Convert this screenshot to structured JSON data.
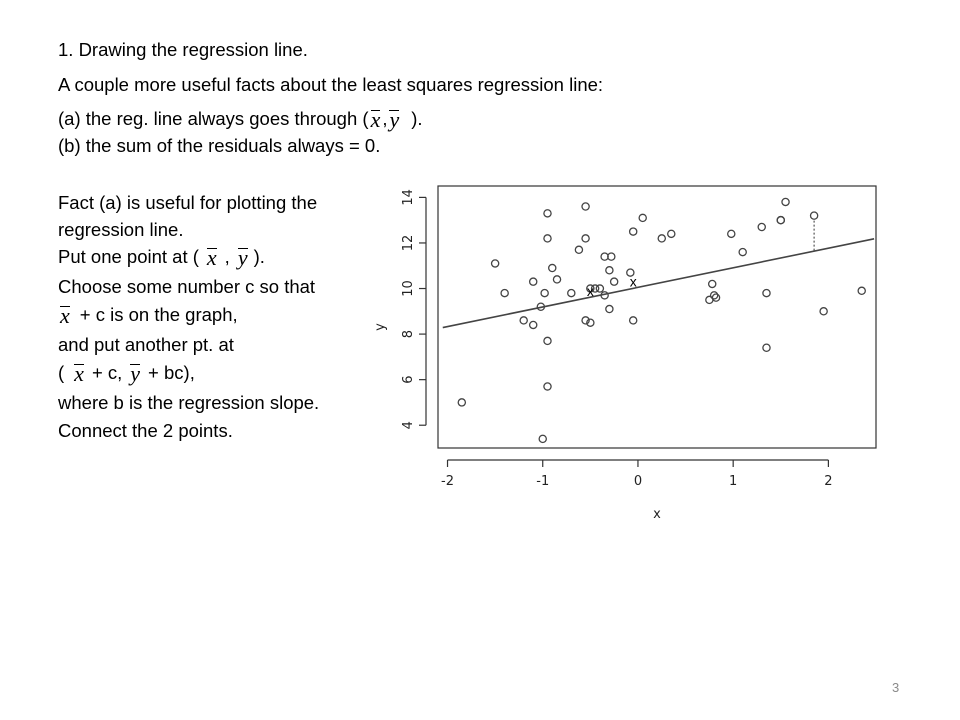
{
  "slide": {
    "lines": {
      "l1": "1. Drawing the regression line.",
      "l2": "A couple more useful facts about the least squares regression line:",
      "l3a": "(a) the reg. line always goes through (",
      "l3b": ").",
      "l4": "(b) the sum of the residuals always = 0.",
      "l5": "Fact (a) is useful for plotting the",
      "l6": "regression line.",
      "l7a": "Put one point at (",
      "l7b": ",",
      "l7c": ").",
      "l8": "Choose some number c so that",
      "l9": "+ c is on the graph,",
      "l10": "and put another pt. at",
      "l11a": "(",
      "l11b": "+ c,",
      "l11c": "+ bc),",
      "l12": "where b is the regression slope.",
      "l13": "Connect the 2 points."
    },
    "symbols": {
      "x": "x",
      "y": "y"
    },
    "page_number": "3"
  },
  "chart_data": {
    "type": "scatter",
    "xlabel": "x",
    "ylabel": "y",
    "xlim": [
      -2.1,
      2.5
    ],
    "ylim": [
      3,
      14.5
    ],
    "xticks": [
      -2,
      -1,
      0,
      1,
      2
    ],
    "yticks": [
      4,
      6,
      8,
      10,
      12,
      14
    ],
    "grid": false,
    "points": [
      [
        -1.85,
        5.0
      ],
      [
        -1.5,
        11.1
      ],
      [
        -1.4,
        9.8
      ],
      [
        -1.2,
        8.6
      ],
      [
        -1.1,
        10.3
      ],
      [
        -1.1,
        8.4
      ],
      [
        -1.02,
        9.2
      ],
      [
        -0.98,
        9.8
      ],
      [
        -1.0,
        3.4
      ],
      [
        -0.95,
        7.7
      ],
      [
        -0.95,
        5.7
      ],
      [
        -0.95,
        12.2
      ],
      [
        -0.95,
        13.3
      ],
      [
        -0.9,
        10.9
      ],
      [
        -0.85,
        10.4
      ],
      [
        -0.7,
        9.8
      ],
      [
        -0.62,
        11.7
      ],
      [
        -0.55,
        13.6
      ],
      [
        -0.55,
        12.2
      ],
      [
        -0.55,
        8.6
      ],
      [
        -0.5,
        8.5
      ],
      [
        -0.5,
        10.0
      ],
      [
        -0.45,
        10.0
      ],
      [
        -0.4,
        10.0
      ],
      [
        -0.35,
        9.7
      ],
      [
        -0.35,
        11.4
      ],
      [
        -0.3,
        9.1
      ],
      [
        -0.3,
        10.8
      ],
      [
        -0.28,
        11.4
      ],
      [
        -0.25,
        10.3
      ],
      [
        -0.08,
        10.7
      ],
      [
        -0.05,
        8.6
      ],
      [
        -0.05,
        12.5
      ],
      [
        0.05,
        13.1
      ],
      [
        0.25,
        12.2
      ],
      [
        0.35,
        12.4
      ],
      [
        0.75,
        9.5
      ],
      [
        0.78,
        10.2
      ],
      [
        0.8,
        9.7
      ],
      [
        0.82,
        9.6
      ],
      [
        0.98,
        12.4
      ],
      [
        1.1,
        11.6
      ],
      [
        1.3,
        12.7
      ],
      [
        1.35,
        9.8
      ],
      [
        1.35,
        7.4
      ],
      [
        1.5,
        13.0
      ],
      [
        1.5,
        13.0
      ],
      [
        1.55,
        13.8
      ],
      [
        1.85,
        13.2
      ],
      [
        1.95,
        9.0
      ],
      [
        2.35,
        9.9
      ]
    ],
    "regression_line": {
      "intercept": 10.05,
      "slope": 0.86
    },
    "residual_point": {
      "x": 1.85,
      "y": 13.2
    },
    "marked_points": [
      {
        "label": "x",
        "x": -0.5,
        "y": 9.9
      },
      {
        "label": "x",
        "x": -0.05,
        "y": 10.3
      }
    ]
  }
}
